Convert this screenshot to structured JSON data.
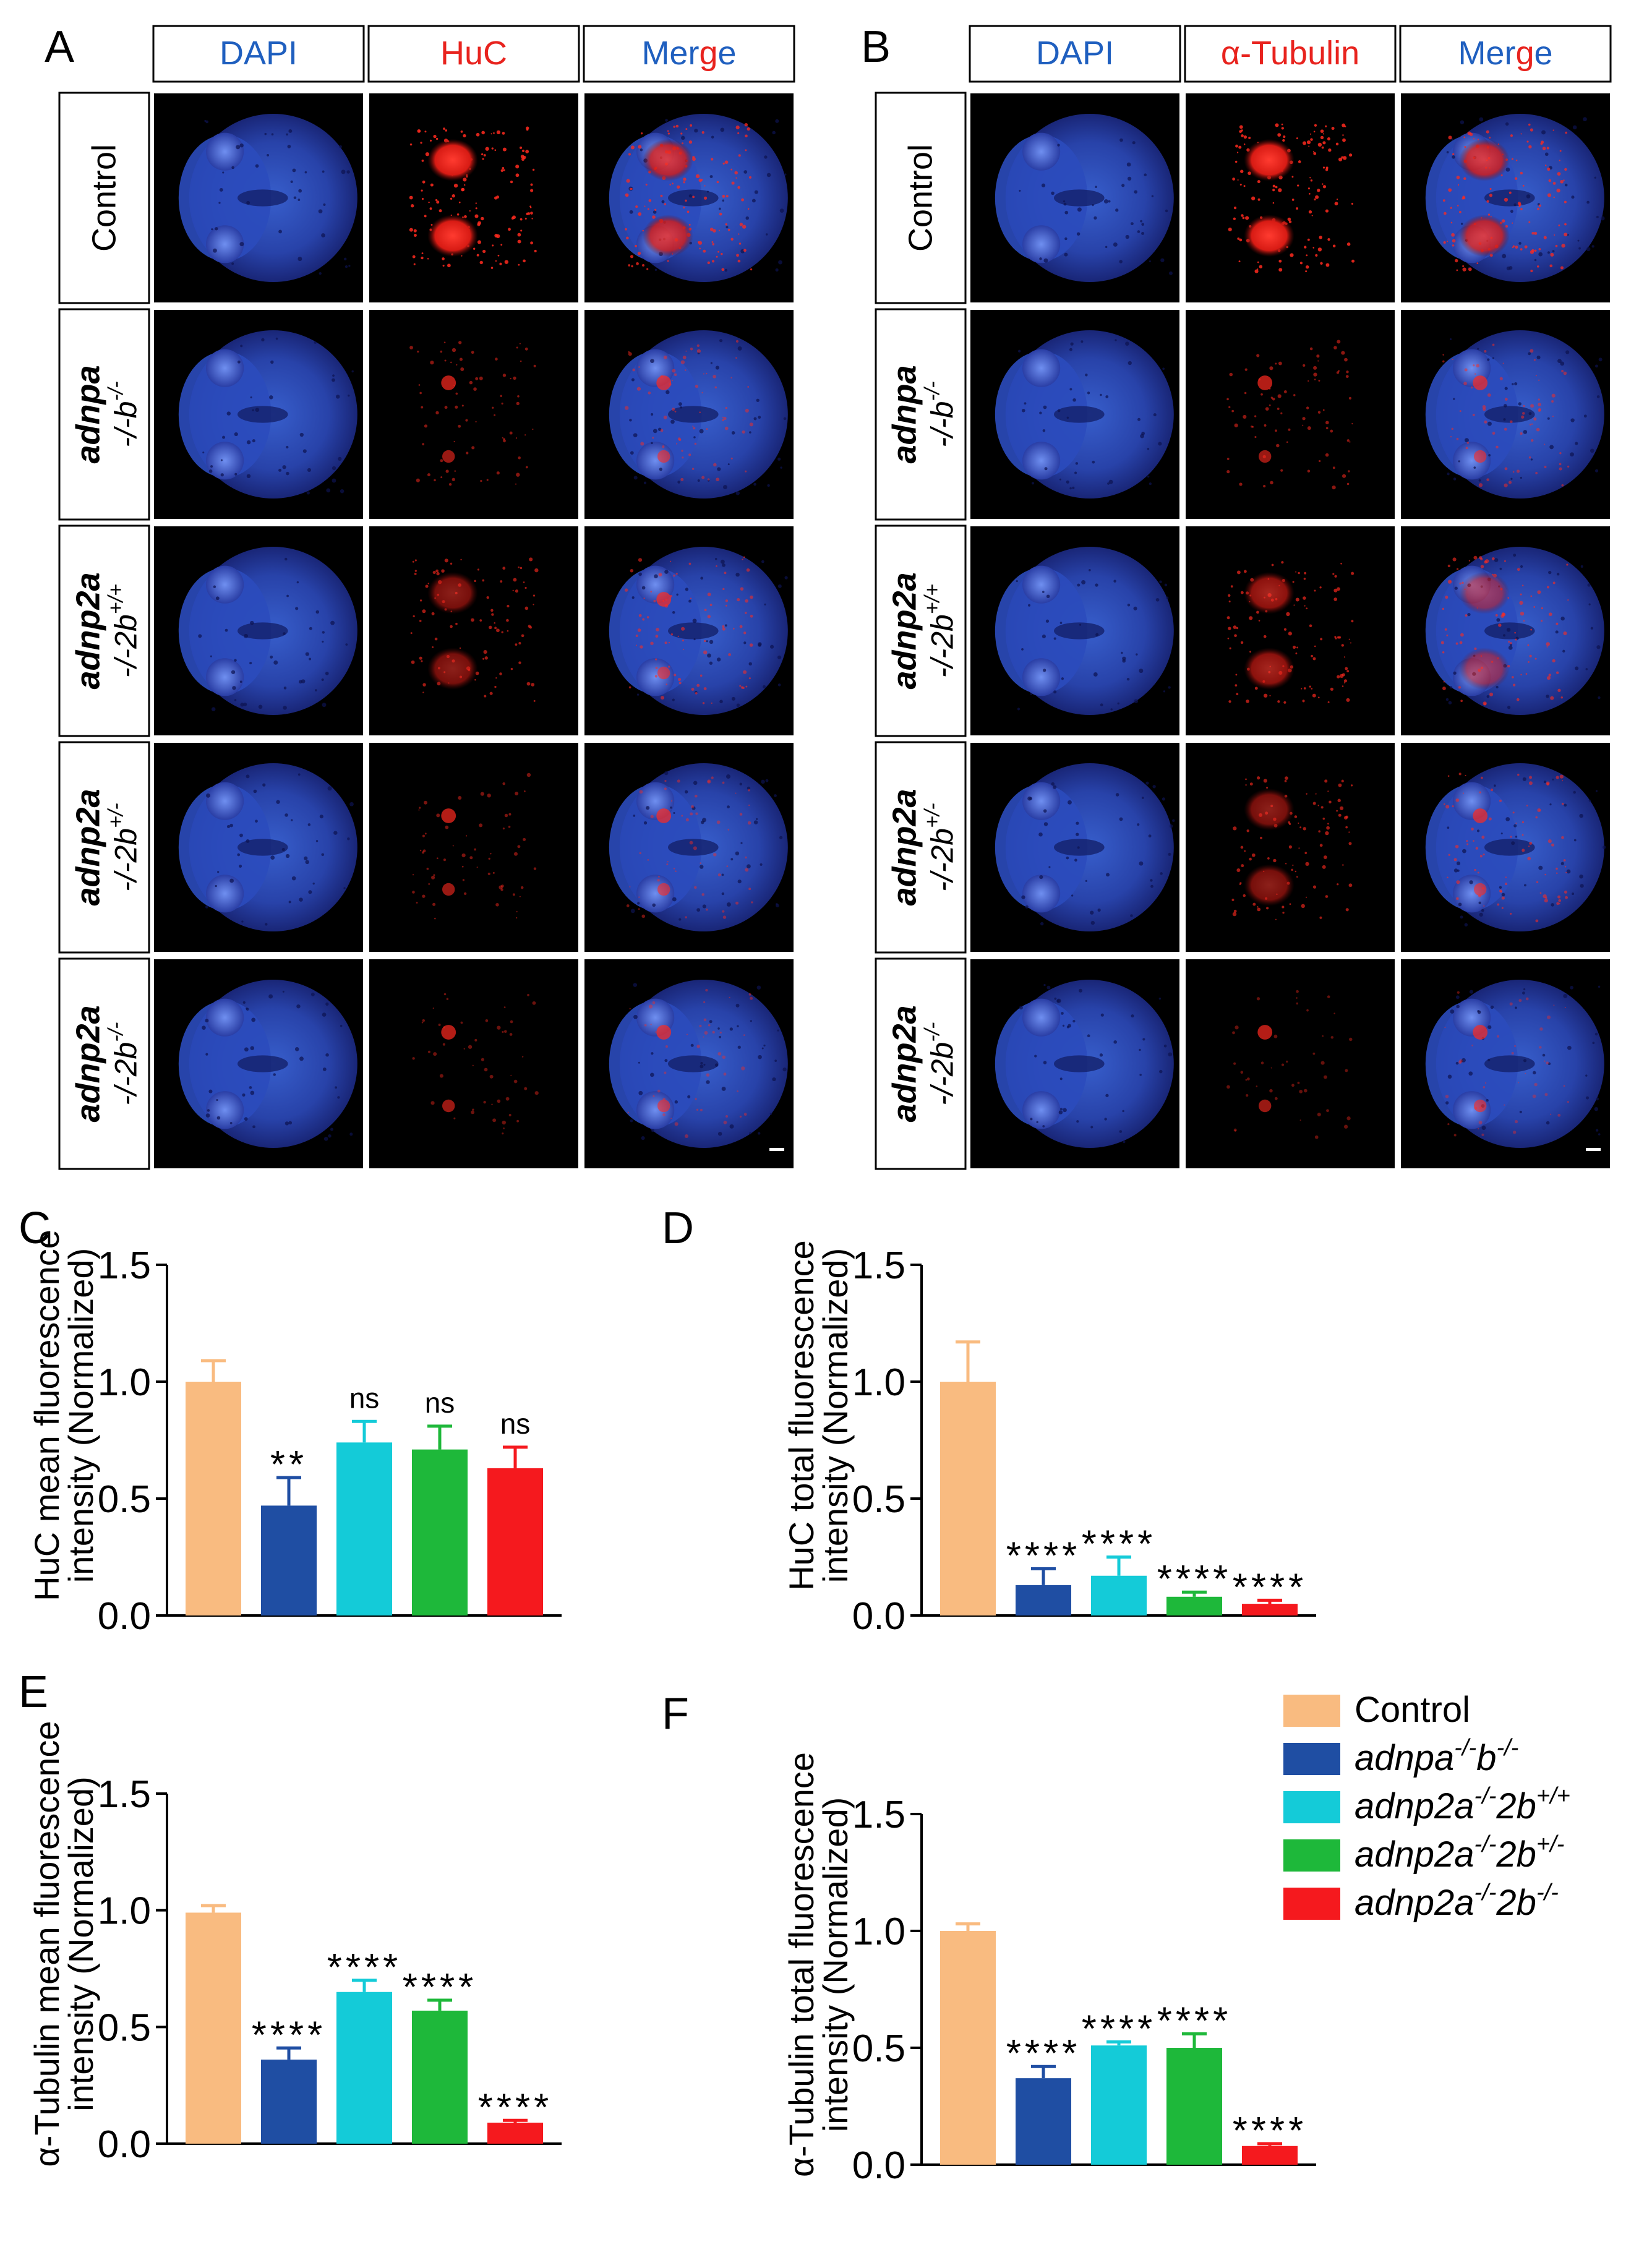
{
  "panels": {
    "A": {
      "letter": "A",
      "channels": [
        "DAPI",
        "HuC",
        "Merge"
      ],
      "channel_colors": [
        "#1f5fbf",
        "#e8231e",
        "mixed"
      ],
      "rows": [
        {
          "line1": "Control",
          "line2": "",
          "sup1": "",
          "sup2": ""
        },
        {
          "line1": "adnpa",
          "line2": "-/-b",
          "sup1": "",
          "sup2": "-/-"
        },
        {
          "line1": "adnp2a",
          "line2": "-/-2b",
          "sup1": "",
          "sup2": "+/+"
        },
        {
          "line1": "adnp2a",
          "line2": "-/-2b",
          "sup1": "",
          "sup2": "+/-"
        },
        {
          "line1": "adnp2a",
          "line2": "-/-2b",
          "sup1": "",
          "sup2": "-/-"
        }
      ],
      "signal_level": [
        1.0,
        0.35,
        0.55,
        0.25,
        0.15
      ]
    },
    "B": {
      "letter": "B",
      "channels": [
        "DAPI",
        "α-Tubulin",
        "Merge"
      ],
      "channel_colors": [
        "#1f5fbf",
        "#e8231e",
        "mixed"
      ],
      "rows": [
        {
          "line1": "Control",
          "line2": "",
          "sup1": "",
          "sup2": ""
        },
        {
          "line1": "adnpa",
          "line2": "-/-b",
          "sup1": "",
          "sup2": "-/-"
        },
        {
          "line1": "adnp2a",
          "line2": "-/-2b",
          "sup1": "",
          "sup2": "+/+"
        },
        {
          "line1": "adnp2a",
          "line2": "-/-2b",
          "sup1": "",
          "sup2": "+/-"
        },
        {
          "line1": "adnp2a",
          "line2": "-/-2b",
          "sup1": "",
          "sup2": "-/-"
        }
      ],
      "signal_level": [
        1.0,
        0.4,
        0.65,
        0.55,
        0.1
      ]
    }
  },
  "legend": {
    "items": [
      {
        "label": "Control",
        "color": "#f9bb80"
      },
      {
        "label": "adnpa",
        "sup1": "-/-",
        "mid": "b",
        "sup2": "-/-",
        "color": "#1f4ea3"
      },
      {
        "label": "adnp2a",
        "sup1": "-/-",
        "mid": "2b",
        "sup2": "+/+",
        "color": "#14cbd8"
      },
      {
        "label": "adnp2a",
        "sup1": "-/-",
        "mid": "2b",
        "sup2": "+/-",
        "color": "#1eb83a"
      },
      {
        "label": "adnp2a",
        "sup1": "-/-",
        "mid": "2b",
        "sup2": "-/-",
        "color": "#f5191e"
      }
    ]
  },
  "chart_data": [
    {
      "panel": "C",
      "type": "bar",
      "ylabel": [
        "HuC mean fluorescence",
        "intensity (Normalized)"
      ],
      "ylim": [
        0,
        1.5
      ],
      "yticks": [
        "0.0",
        "0.5",
        "1.0",
        "1.5"
      ],
      "categories": [
        "Control",
        "adnpa-/-b-/-",
        "adnp2a-/-2b+/+",
        "adnp2a-/-2b+/-",
        "adnp2a-/-2b-/-"
      ],
      "values": [
        1.0,
        0.47,
        0.74,
        0.71,
        0.63
      ],
      "errors": [
        0.09,
        0.12,
        0.09,
        0.1,
        0.09
      ],
      "annotations": [
        "",
        "**",
        "ns",
        "ns",
        "ns"
      ]
    },
    {
      "panel": "D",
      "type": "bar",
      "ylabel": [
        "HuC total fluorescence",
        "intensity (Normalized)"
      ],
      "ylim": [
        0,
        1.5
      ],
      "yticks": [
        "0.0",
        "0.5",
        "1.0",
        "1.5"
      ],
      "categories": [
        "Control",
        "adnpa-/-b-/-",
        "adnp2a-/-2b+/+",
        "adnp2a-/-2b+/-",
        "adnp2a-/-2b-/-"
      ],
      "values": [
        1.0,
        0.13,
        0.17,
        0.08,
        0.05
      ],
      "errors": [
        0.17,
        0.07,
        0.08,
        0.02,
        0.015
      ],
      "annotations": [
        "",
        "****",
        "****",
        "****",
        "****"
      ]
    },
    {
      "panel": "E",
      "type": "bar",
      "ylabel": [
        "α-Tubulin mean fluorescence",
        "intensity (Normalized)"
      ],
      "ylim": [
        0,
        1.5
      ],
      "yticks": [
        "0.0",
        "0.5",
        "1.0",
        "1.5"
      ],
      "categories": [
        "Control",
        "adnpa-/-b-/-",
        "adnp2a-/-2b+/+",
        "adnp2a-/-2b+/-",
        "adnp2a-/-2b-/-"
      ],
      "values": [
        0.99,
        0.36,
        0.65,
        0.57,
        0.09
      ],
      "errors": [
        0.03,
        0.05,
        0.05,
        0.045,
        0.01
      ],
      "annotations": [
        "",
        "****",
        "****",
        "****",
        "****"
      ]
    },
    {
      "panel": "F",
      "type": "bar",
      "ylabel": [
        "α-Tubulin total fluorescence",
        "intensity (Normalized)"
      ],
      "ylim": [
        0,
        1.5
      ],
      "yticks": [
        "0.0",
        "0.5",
        "1.0",
        "1.5"
      ],
      "categories": [
        "Control",
        "adnpa-/-b-/-",
        "adnp2a-/-2b+/+",
        "adnp2a-/-2b+/-",
        "adnp2a-/-2b-/-"
      ],
      "values": [
        1.0,
        0.37,
        0.51,
        0.5,
        0.08
      ],
      "errors": [
        0.03,
        0.05,
        0.015,
        0.06,
        0.01
      ],
      "annotations": [
        "",
        "****",
        "****",
        "****",
        "****"
      ]
    }
  ]
}
